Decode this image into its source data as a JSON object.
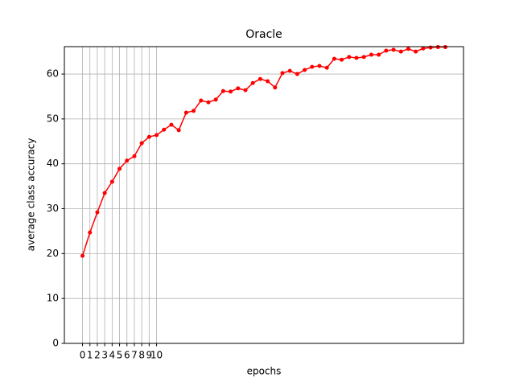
{
  "chart_data": {
    "type": "line",
    "title": "Oracle",
    "x_label": "epochs",
    "y_label": "average class accuracy",
    "x": [
      0,
      1,
      2,
      3,
      4,
      5,
      6,
      7,
      8,
      9,
      10,
      11,
      12,
      13,
      14,
      15,
      16,
      17,
      18,
      19,
      20,
      21,
      22,
      23,
      24,
      25,
      26,
      27,
      28,
      29,
      30,
      31,
      32,
      33,
      34,
      35,
      36,
      37,
      38,
      39,
      40,
      41,
      42,
      43,
      44,
      45,
      46,
      47,
      48,
      49
    ],
    "series": [
      {
        "name": "Oracle",
        "color": "#ff0000",
        "values": [
          19.5,
          24.7,
          29.2,
          33.5,
          36.0,
          38.9,
          40.7,
          41.7,
          44.6,
          46.0,
          46.4,
          47.6,
          48.7,
          47.5,
          51.4,
          51.8,
          54.1,
          53.7,
          54.3,
          56.2,
          56.1,
          56.8,
          56.4,
          58.0,
          58.9,
          58.4,
          57.0,
          60.2,
          60.7,
          60.0,
          60.9,
          61.6,
          61.8,
          61.4,
          63.4,
          63.2,
          63.8,
          63.6,
          63.8,
          64.3,
          64.3,
          65.2,
          65.4,
          65.0,
          65.6,
          65.0,
          65.7,
          65.9,
          66.0,
          66.0
        ]
      }
    ],
    "xlim": [
      -2.45,
      51.45
    ],
    "ylim": [
      0,
      66.1
    ],
    "xticks": [
      0,
      1,
      2,
      3,
      4,
      5,
      6,
      7,
      8,
      9,
      10
    ],
    "yticks": [
      0,
      10,
      20,
      30,
      40,
      50,
      60
    ],
    "grid": true
  }
}
